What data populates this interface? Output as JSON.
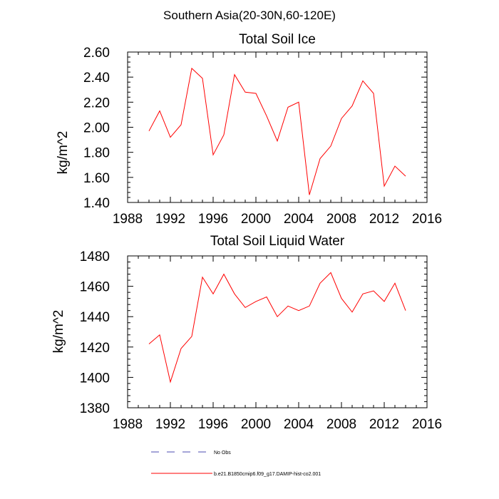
{
  "page_title": "Southern Asia(20-30N,60-120E)",
  "legend": [
    {
      "label": "No Obs",
      "color": "#4b4bb0",
      "style": "dashed"
    },
    {
      "label": "b.e21.B1850cmip6.f09_g17.DAMIP-hist-co2.001",
      "color": "#ff0000",
      "style": "solid"
    }
  ],
  "chart_data": [
    {
      "type": "line",
      "title": "Total Soil Ice",
      "xlabel": "",
      "ylabel": "kg/m^2",
      "xlim": [
        1988,
        2016
      ],
      "ylim": [
        1.4,
        2.6
      ],
      "xticks": [
        1988,
        1992,
        1996,
        2000,
        2004,
        2008,
        2012,
        2016
      ],
      "yticks": [
        "1.40",
        "1.60",
        "1.80",
        "2.00",
        "2.20",
        "2.40",
        "2.60"
      ],
      "x": [
        1990,
        1991,
        1992,
        1993,
        1994,
        1995,
        1996,
        1997,
        1998,
        1999,
        2000,
        2001,
        2002,
        2003,
        2004,
        2005,
        2006,
        2007,
        2008,
        2009,
        2010,
        2011,
        2012,
        2013,
        2014
      ],
      "series": [
        {
          "name": "b.e21.B1850cmip6.f09_g17.DAMIP-hist-co2.001",
          "color": "#ff0000",
          "values": [
            1.97,
            2.13,
            1.92,
            2.02,
            2.47,
            2.39,
            1.78,
            1.94,
            2.42,
            2.28,
            2.27,
            2.09,
            1.89,
            2.16,
            2.2,
            1.46,
            1.75,
            1.85,
            2.07,
            2.17,
            2.37,
            2.27,
            1.53,
            1.69,
            1.61
          ]
        }
      ]
    },
    {
      "type": "line",
      "title": "Total Soil Liquid Water",
      "xlabel": "",
      "ylabel": "kg/m^2",
      "xlim": [
        1988,
        2016
      ],
      "ylim": [
        1380,
        1480
      ],
      "xticks": [
        1988,
        1992,
        1996,
        2000,
        2004,
        2008,
        2012,
        2016
      ],
      "yticks": [
        "1380",
        "1400",
        "1420",
        "1440",
        "1460",
        "1480"
      ],
      "x": [
        1990,
        1991,
        1992,
        1993,
        1994,
        1995,
        1996,
        1997,
        1998,
        1999,
        2000,
        2001,
        2002,
        2003,
        2004,
        2005,
        2006,
        2007,
        2008,
        2009,
        2010,
        2011,
        2012,
        2013,
        2014
      ],
      "series": [
        {
          "name": "b.e21.B1850cmip6.f09_g17.DAMIP-hist-co2.001",
          "color": "#ff0000",
          "values": [
            1422,
            1428,
            1397,
            1419,
            1427,
            1466,
            1455,
            1468,
            1455,
            1446,
            1450,
            1453,
            1440,
            1447,
            1444,
            1447,
            1462,
            1469,
            1452,
            1443,
            1455,
            1457,
            1450,
            1462,
            1444
          ]
        }
      ]
    }
  ]
}
